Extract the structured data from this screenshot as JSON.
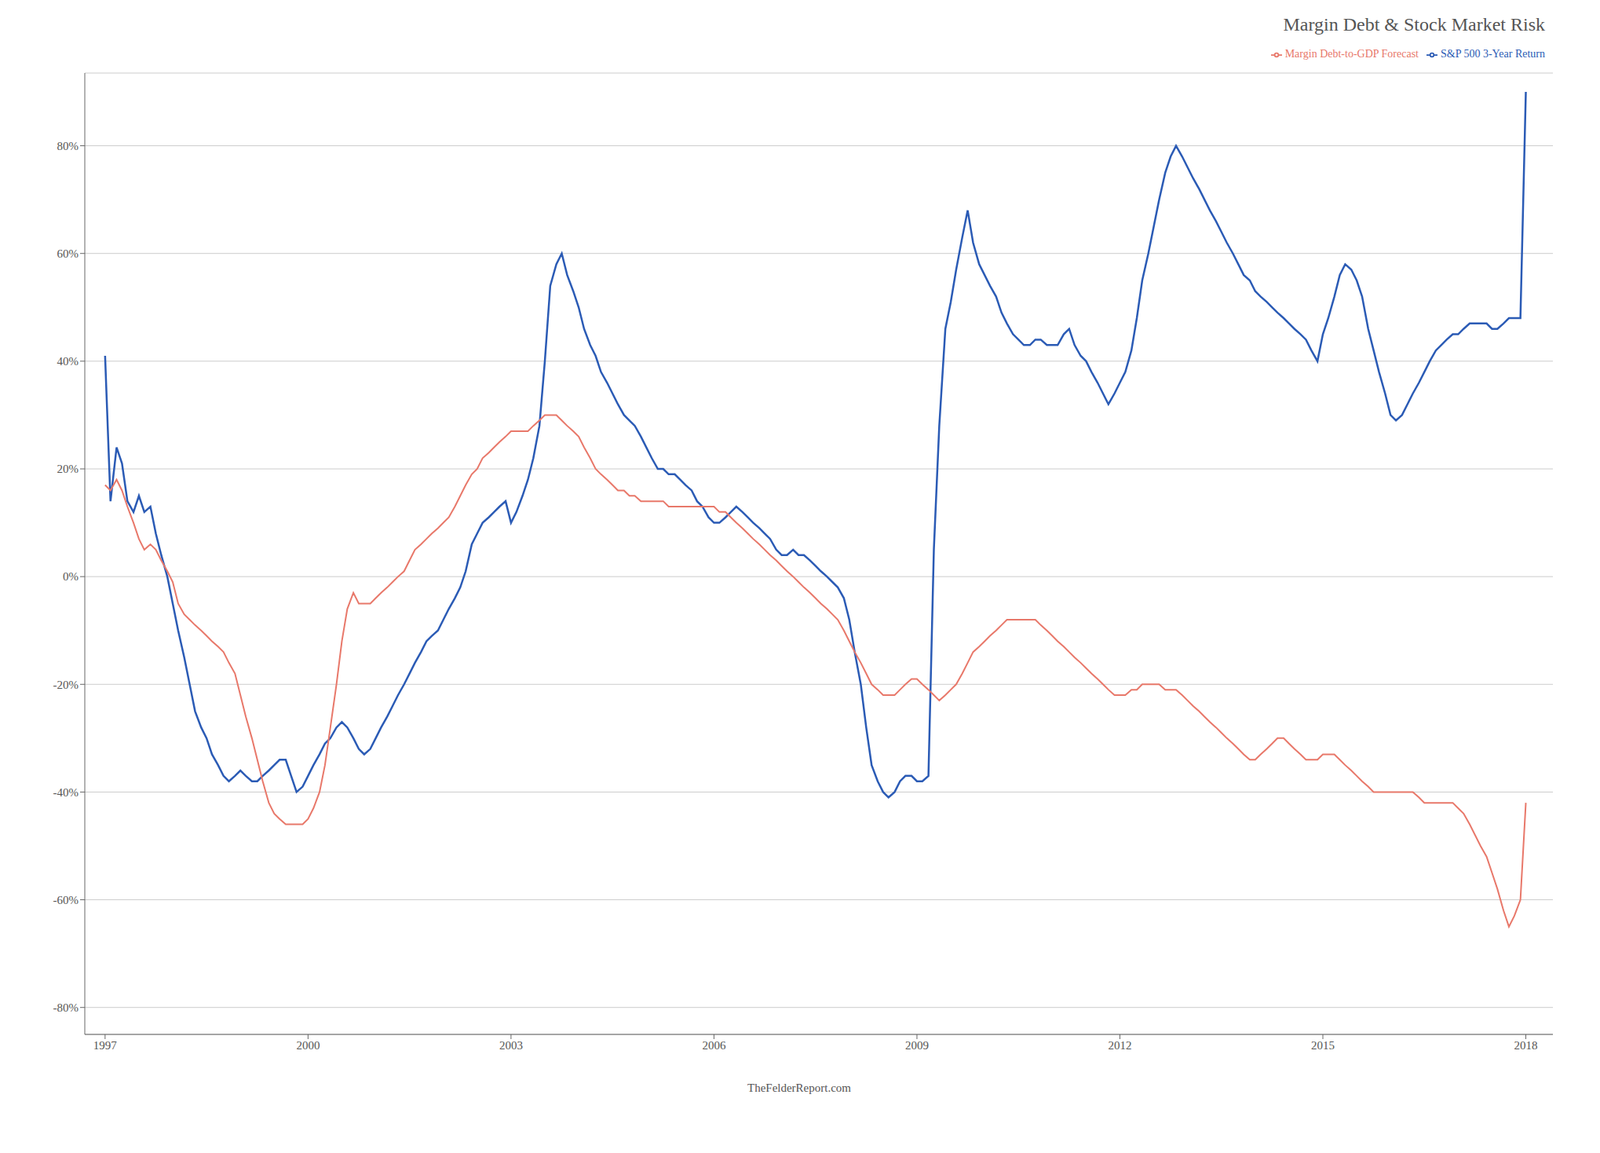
{
  "chart_data": {
    "type": "line",
    "title": "Margin Debt & Stock Market Risk",
    "annotations": [
      "TheFelderReport.com"
    ],
    "legend": "upper right",
    "grid": "y",
    "xlim": [
      1996.7,
      2018.4
    ],
    "xticks": [
      1997,
      2000,
      2003,
      2006,
      2009,
      2012,
      2015,
      2018
    ],
    "ylim": [
      -0.85,
      0.935
    ],
    "yticks": [
      {
        "value": 0.8,
        "label": "80%"
      },
      {
        "value": 0.6,
        "label": "60%"
      },
      {
        "value": 0.4,
        "label": "40%"
      },
      {
        "value": 0.2,
        "label": "20%"
      },
      {
        "value": 0.0,
        "label": "0%"
      },
      {
        "value": -0.2,
        "label": "-20%"
      },
      {
        "value": -0.4,
        "label": "-40%"
      },
      {
        "value": -0.6,
        "label": "-60%"
      },
      {
        "value": -0.8,
        "label": "-80%"
      }
    ],
    "x": [
      1997.0,
      1997.08,
      1997.17,
      1997.25,
      1997.33,
      1997.42,
      1997.5,
      1997.58,
      1997.67,
      1997.75,
      1997.83,
      1997.92,
      1998.0,
      1998.08,
      1998.17,
      1998.25,
      1998.33,
      1998.42,
      1998.5,
      1998.58,
      1998.67,
      1998.75,
      1998.83,
      1998.92,
      1999.0,
      1999.08,
      1999.17,
      1999.25,
      1999.33,
      1999.42,
      1999.5,
      1999.58,
      1999.67,
      1999.75,
      1999.83,
      1999.92,
      2000.0,
      2000.08,
      2000.17,
      2000.25,
      2000.33,
      2000.42,
      2000.5,
      2000.58,
      2000.67,
      2000.75,
      2000.83,
      2000.92,
      2001.0,
      2001.08,
      2001.17,
      2001.25,
      2001.33,
      2001.42,
      2001.5,
      2001.58,
      2001.67,
      2001.75,
      2001.83,
      2001.92,
      2002.0,
      2002.08,
      2002.17,
      2002.25,
      2002.33,
      2002.42,
      2002.5,
      2002.58,
      2002.67,
      2002.75,
      2002.83,
      2002.92,
      2003.0,
      2003.08,
      2003.17,
      2003.25,
      2003.33,
      2003.42,
      2003.5,
      2003.58,
      2003.67,
      2003.75,
      2003.83,
      2003.92,
      2004.0,
      2004.08,
      2004.17,
      2004.25,
      2004.33,
      2004.42,
      2004.5,
      2004.58,
      2004.67,
      2004.75,
      2004.83,
      2004.92,
      2005.0,
      2005.08,
      2005.17,
      2005.25,
      2005.33,
      2005.42,
      2005.5,
      2005.58,
      2005.67,
      2005.75,
      2005.83,
      2005.92,
      2006.0,
      2006.08,
      2006.17,
      2006.25,
      2006.33,
      2006.42,
      2006.5,
      2006.58,
      2006.67,
      2006.75,
      2006.83,
      2006.92,
      2007.0,
      2007.08,
      2007.17,
      2007.25,
      2007.33,
      2007.42,
      2007.5,
      2007.58,
      2007.67,
      2007.75,
      2007.83,
      2007.92,
      2008.0,
      2008.08,
      2008.17,
      2008.25,
      2008.33,
      2008.42,
      2008.5,
      2008.58,
      2008.67,
      2008.75,
      2008.83,
      2008.92,
      2009.0,
      2009.08,
      2009.17,
      2009.25,
      2009.33,
      2009.42,
      2009.5,
      2009.58,
      2009.67,
      2009.75,
      2009.83,
      2009.92,
      2010.0,
      2010.08,
      2010.17,
      2010.25,
      2010.33,
      2010.42,
      2010.5,
      2010.58,
      2010.67,
      2010.75,
      2010.83,
      2010.92,
      2011.0,
      2011.08,
      2011.17,
      2011.25,
      2011.33,
      2011.42,
      2011.5,
      2011.58,
      2011.67,
      2011.75,
      2011.83,
      2011.92,
      2012.0,
      2012.08,
      2012.17,
      2012.25,
      2012.33,
      2012.42,
      2012.5,
      2012.58,
      2012.67,
      2012.75,
      2012.83,
      2012.92,
      2013.0,
      2013.08,
      2013.17,
      2013.25,
      2013.33,
      2013.42,
      2013.5,
      2013.58,
      2013.67,
      2013.75,
      2013.83,
      2013.92,
      2014.0,
      2014.08,
      2014.17,
      2014.25,
      2014.33,
      2014.42,
      2014.5,
      2014.58,
      2014.67,
      2014.75,
      2014.83,
      2014.92,
      2015.0,
      2015.08,
      2015.17,
      2015.25,
      2015.33,
      2015.42,
      2015.5,
      2015.58,
      2015.67,
      2015.75,
      2015.83,
      2015.92,
      2016.0,
      2016.08,
      2016.17,
      2016.25,
      2016.33,
      2016.42,
      2016.5,
      2016.58,
      2016.67,
      2016.75,
      2016.83,
      2016.92,
      2017.0,
      2017.08,
      2017.17,
      2017.25,
      2017.33,
      2017.42,
      2017.5,
      2017.58,
      2017.67,
      2017.75,
      2017.83,
      2017.92,
      2018.0
    ],
    "series": [
      {
        "name": "S&P 500 3-Year Return",
        "color": "#2B5BB5",
        "values": [
          0.41,
          0.14,
          0.24,
          0.21,
          0.14,
          0.12,
          0.15,
          0.12,
          0.13,
          0.08,
          0.04,
          0.0,
          -0.05,
          -0.1,
          -0.15,
          -0.2,
          -0.25,
          -0.28,
          -0.3,
          -0.33,
          -0.35,
          -0.37,
          -0.38,
          -0.37,
          -0.36,
          -0.37,
          -0.38,
          -0.38,
          -0.37,
          -0.36,
          -0.35,
          -0.34,
          -0.34,
          -0.37,
          -0.4,
          -0.39,
          -0.37,
          -0.35,
          -0.33,
          -0.31,
          -0.3,
          -0.28,
          -0.27,
          -0.28,
          -0.3,
          -0.32,
          -0.33,
          -0.32,
          -0.3,
          -0.28,
          -0.26,
          -0.24,
          -0.22,
          -0.2,
          -0.18,
          -0.16,
          -0.14,
          -0.12,
          -0.11,
          -0.1,
          -0.08,
          -0.06,
          -0.04,
          -0.02,
          0.01,
          0.06,
          0.08,
          0.1,
          0.11,
          0.12,
          0.13,
          0.14,
          0.1,
          0.12,
          0.15,
          0.18,
          0.22,
          0.28,
          0.4,
          0.54,
          0.58,
          0.6,
          0.56,
          0.53,
          0.5,
          0.46,
          0.43,
          0.41,
          0.38,
          0.36,
          0.34,
          0.32,
          0.3,
          0.29,
          0.28,
          0.26,
          0.24,
          0.22,
          0.2,
          0.2,
          0.19,
          0.19,
          0.18,
          0.17,
          0.16,
          0.14,
          0.13,
          0.11,
          0.1,
          0.1,
          0.11,
          0.12,
          0.13,
          0.12,
          0.11,
          0.1,
          0.09,
          0.08,
          0.07,
          0.05,
          0.04,
          0.04,
          0.05,
          0.04,
          0.04,
          0.03,
          0.02,
          0.01,
          0.0,
          -0.01,
          -0.02,
          -0.04,
          -0.08,
          -0.14,
          -0.2,
          -0.28,
          -0.35,
          -0.38,
          -0.4,
          -0.41,
          -0.4,
          -0.38,
          -0.37,
          -0.37,
          -0.38,
          -0.38,
          -0.37,
          0.05,
          0.28,
          0.46,
          0.51,
          0.57,
          0.63,
          0.68,
          0.62,
          0.58,
          0.56,
          0.54,
          0.52,
          0.49,
          0.47,
          0.45,
          0.44,
          0.43,
          0.43,
          0.44,
          0.44,
          0.43,
          0.43,
          0.43,
          0.45,
          0.46,
          0.43,
          0.41,
          0.4,
          0.38,
          0.36,
          0.34,
          0.32,
          0.34,
          0.36,
          0.38,
          0.42,
          0.48,
          0.55,
          0.6,
          0.65,
          0.7,
          0.75,
          0.78,
          0.8,
          0.78,
          0.76,
          0.74,
          0.72,
          0.7,
          0.68,
          0.66,
          0.64,
          0.62,
          0.6,
          0.58,
          0.56,
          0.55,
          0.53,
          0.52,
          0.51,
          0.5,
          0.49,
          0.48,
          0.47,
          0.46,
          0.45,
          0.44,
          0.42,
          0.4,
          0.45,
          0.48,
          0.52,
          0.56,
          0.58,
          0.57,
          0.55,
          0.52,
          0.46,
          0.42,
          0.38,
          0.34,
          0.3,
          0.29,
          0.3,
          0.32,
          0.34,
          0.36,
          0.38,
          0.4,
          0.42,
          0.43,
          0.44,
          0.45,
          0.45,
          0.46,
          0.47,
          0.47,
          0.47,
          0.47,
          0.46,
          0.46,
          0.47,
          0.48,
          0.48,
          0.48,
          0.9
        ]
      },
      {
        "name": "Margin Debt-to-GDP Forecast",
        "color": "#E8786A",
        "values": [
          0.17,
          0.16,
          0.18,
          0.16,
          0.13,
          0.1,
          0.07,
          0.05,
          0.06,
          0.05,
          0.03,
          0.01,
          -0.01,
          -0.05,
          -0.07,
          -0.08,
          -0.09,
          -0.1,
          -0.11,
          -0.12,
          -0.13,
          -0.14,
          -0.16,
          -0.18,
          -0.22,
          -0.26,
          -0.3,
          -0.34,
          -0.38,
          -0.42,
          -0.44,
          -0.45,
          -0.46,
          -0.46,
          -0.46,
          -0.46,
          -0.45,
          -0.43,
          -0.4,
          -0.35,
          -0.28,
          -0.2,
          -0.12,
          -0.06,
          -0.03,
          -0.05,
          -0.05,
          -0.05,
          -0.04,
          -0.03,
          -0.02,
          -0.01,
          0.0,
          0.01,
          0.03,
          0.05,
          0.06,
          0.07,
          0.08,
          0.09,
          0.1,
          0.11,
          0.13,
          0.15,
          0.17,
          0.19,
          0.2,
          0.22,
          0.23,
          0.24,
          0.25,
          0.26,
          0.27,
          0.27,
          0.27,
          0.27,
          0.28,
          0.29,
          0.3,
          0.3,
          0.3,
          0.29,
          0.28,
          0.27,
          0.26,
          0.24,
          0.22,
          0.2,
          0.19,
          0.18,
          0.17,
          0.16,
          0.16,
          0.15,
          0.15,
          0.14,
          0.14,
          0.14,
          0.14,
          0.14,
          0.13,
          0.13,
          0.13,
          0.13,
          0.13,
          0.13,
          0.13,
          0.13,
          0.13,
          0.12,
          0.12,
          0.11,
          0.1,
          0.09,
          0.08,
          0.07,
          0.06,
          0.05,
          0.04,
          0.03,
          0.02,
          0.01,
          0.0,
          -0.01,
          -0.02,
          -0.03,
          -0.04,
          -0.05,
          -0.06,
          -0.07,
          -0.08,
          -0.1,
          -0.12,
          -0.14,
          -0.16,
          -0.18,
          -0.2,
          -0.21,
          -0.22,
          -0.22,
          -0.22,
          -0.21,
          -0.2,
          -0.19,
          -0.19,
          -0.2,
          -0.21,
          -0.22,
          -0.23,
          -0.22,
          -0.21,
          -0.2,
          -0.18,
          -0.16,
          -0.14,
          -0.13,
          -0.12,
          -0.11,
          -0.1,
          -0.09,
          -0.08,
          -0.08,
          -0.08,
          -0.08,
          -0.08,
          -0.08,
          -0.09,
          -0.1,
          -0.11,
          -0.12,
          -0.13,
          -0.14,
          -0.15,
          -0.16,
          -0.17,
          -0.18,
          -0.19,
          -0.2,
          -0.21,
          -0.22,
          -0.22,
          -0.22,
          -0.21,
          -0.21,
          -0.2,
          -0.2,
          -0.2,
          -0.2,
          -0.21,
          -0.21,
          -0.21,
          -0.22,
          -0.23,
          -0.24,
          -0.25,
          -0.26,
          -0.27,
          -0.28,
          -0.29,
          -0.3,
          -0.31,
          -0.32,
          -0.33,
          -0.34,
          -0.34,
          -0.33,
          -0.32,
          -0.31,
          -0.3,
          -0.3,
          -0.31,
          -0.32,
          -0.33,
          -0.34,
          -0.34,
          -0.34,
          -0.33,
          -0.33,
          -0.33,
          -0.34,
          -0.35,
          -0.36,
          -0.37,
          -0.38,
          -0.39,
          -0.4,
          -0.4,
          -0.4,
          -0.4,
          -0.4,
          -0.4,
          -0.4,
          -0.4,
          -0.41,
          -0.42,
          -0.42,
          -0.42,
          -0.42,
          -0.42,
          -0.42,
          -0.43,
          -0.44,
          -0.46,
          -0.48,
          -0.5,
          -0.52,
          -0.55,
          -0.58,
          -0.62,
          -0.65,
          -0.63,
          -0.6,
          -0.42
        ]
      }
    ]
  }
}
